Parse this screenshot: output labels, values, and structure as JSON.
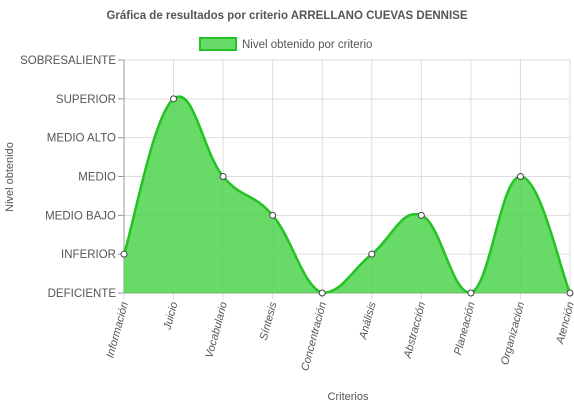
{
  "chart_data": {
    "type": "area",
    "title": "Gráfica de resultados por criterio ARRELLANO CUEVAS DENNISE",
    "xlabel": "Criterios",
    "ylabel": "Nivel obtenido",
    "levels": [
      "DEFICIENTE",
      "INFERIOR",
      "MEDIO BAJO",
      "MEDIO",
      "MEDIO ALTO",
      "SUPERIOR",
      "SOBRESALIENTE"
    ],
    "categories": [
      "Información",
      "Juicio",
      "Vocabulario",
      "Síntesis",
      "Concentración",
      "Análisis",
      "Abstracción",
      "Planeación",
      "Organización",
      "Atención"
    ],
    "series": [
      {
        "name": "Nivel obtenido por criterio",
        "values": [
          1,
          5,
          3,
          2,
          0,
          1,
          2,
          0,
          3,
          0
        ],
        "value_labels": [
          "INFERIOR",
          "SUPERIOR",
          "MEDIO",
          "MEDIO BAJO",
          "DEFICIENTE",
          "INFERIOR",
          "MEDIO BAJO",
          "DEFICIENTE",
          "MEDIO",
          "DEFICIENTE"
        ]
      }
    ],
    "ylim": [
      0,
      6
    ],
    "grid": true,
    "legend_position": "top",
    "colors": {
      "fill": "#4cd44c",
      "fill_opacity": 0.85,
      "line": "#22c322",
      "point_fill": "#ffffff",
      "point_stroke": "#444444",
      "grid": "#dddddd",
      "axis": "#999999"
    }
  }
}
